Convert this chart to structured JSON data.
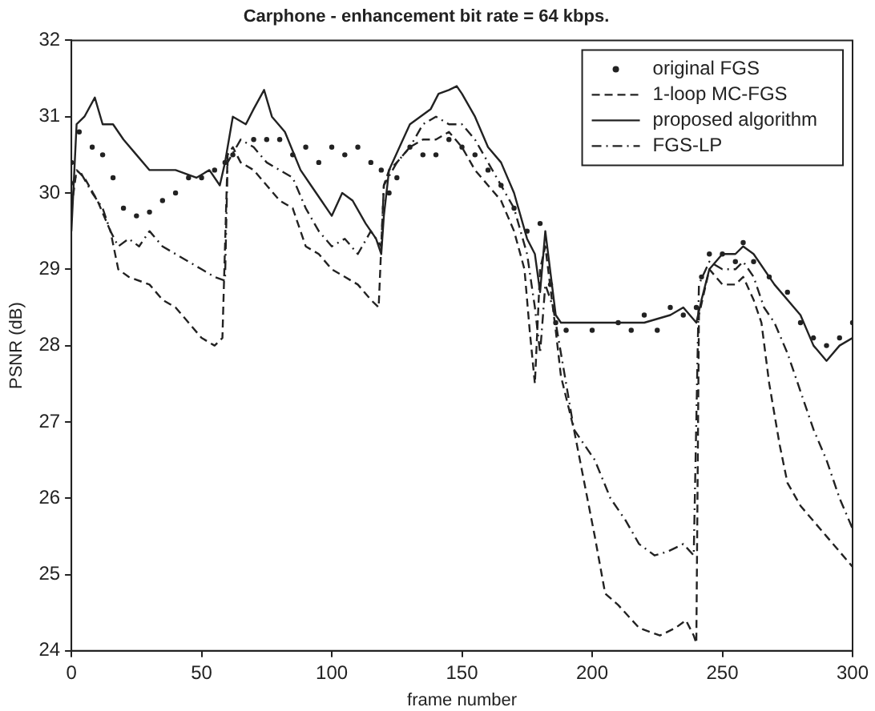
{
  "chart_data": {
    "type": "line",
    "title": "Carphone - enhancement bit rate = 64 kbps.",
    "xlabel": "frame number",
    "ylabel": "PSNR (dB)",
    "xlim": [
      0,
      300
    ],
    "xticks": [
      0,
      50,
      100,
      150,
      200,
      250,
      300
    ],
    "ylim": [
      24,
      32
    ],
    "yticks": [
      24,
      25,
      26,
      27,
      28,
      29,
      30,
      31,
      32
    ],
    "grid": false,
    "legend": "top right",
    "series": [
      {
        "name": "original FGS",
        "type": "scatter",
        "marker": "circle",
        "color": "#222222",
        "x": [
          0,
          3,
          8,
          12,
          16,
          20,
          25,
          30,
          35,
          40,
          45,
          50,
          55,
          59,
          62,
          70,
          75,
          80,
          85,
          90,
          95,
          100,
          105,
          110,
          115,
          119,
          122,
          125,
          130,
          135,
          140,
          145,
          150,
          155,
          160,
          165,
          170,
          175,
          180,
          184,
          186,
          190,
          200,
          210,
          215,
          220,
          225,
          230,
          235,
          240,
          242,
          245,
          250,
          255,
          258,
          262,
          268,
          275,
          280,
          285,
          290,
          295,
          300
        ],
        "values": [
          30.4,
          30.8,
          30.6,
          30.5,
          30.2,
          29.8,
          29.7,
          29.75,
          29.9,
          30.0,
          30.2,
          30.2,
          30.3,
          30.4,
          30.5,
          30.7,
          30.7,
          30.7,
          30.5,
          30.6,
          30.4,
          30.6,
          30.5,
          30.6,
          30.4,
          30.3,
          30.0,
          30.2,
          30.6,
          30.5,
          30.5,
          30.7,
          30.6,
          30.5,
          30.3,
          30.1,
          29.8,
          29.5,
          29.6,
          28.8,
          28.3,
          28.2,
          28.2,
          28.3,
          28.2,
          28.4,
          28.2,
          28.5,
          28.4,
          28.5,
          28.9,
          29.2,
          29.2,
          29.1,
          29.35,
          29.1,
          28.9,
          28.7,
          28.3,
          28.1,
          28.0,
          28.1,
          28.3
        ]
      },
      {
        "name": "1-loop MC-FGS",
        "line_style": "dashed",
        "marker": "none",
        "color": "#222222",
        "x": [
          0,
          2,
          5,
          10,
          15,
          18,
          22,
          30,
          35,
          40,
          45,
          50,
          55,
          58,
          60,
          62,
          65,
          70,
          75,
          80,
          85,
          90,
          95,
          100,
          105,
          110,
          115,
          118,
          120,
          122,
          125,
          130,
          135,
          140,
          145,
          150,
          155,
          160,
          165,
          170,
          174,
          176,
          178,
          180,
          182,
          186,
          188,
          193,
          201,
          205,
          210,
          218,
          226,
          232,
          236,
          239,
          240,
          241,
          245,
          250,
          255,
          258,
          262,
          265,
          268,
          272,
          275,
          280,
          285,
          290,
          295,
          300
        ],
        "values": [
          29.8,
          30.3,
          30.2,
          29.9,
          29.5,
          29.0,
          28.9,
          28.8,
          28.6,
          28.5,
          28.3,
          28.1,
          28.0,
          28.1,
          30.5,
          30.6,
          30.4,
          30.3,
          30.1,
          29.9,
          29.8,
          29.3,
          29.2,
          29.0,
          28.9,
          28.8,
          28.6,
          28.5,
          30.1,
          30.3,
          30.4,
          30.6,
          30.7,
          30.7,
          30.8,
          30.6,
          30.3,
          30.1,
          29.9,
          29.5,
          29.0,
          28.2,
          27.5,
          29.0,
          29.3,
          28.2,
          27.6,
          26.9,
          25.5,
          24.75,
          24.6,
          24.3,
          24.2,
          24.3,
          24.4,
          24.2,
          24.1,
          28.4,
          29.0,
          28.8,
          28.8,
          28.9,
          28.6,
          28.3,
          27.5,
          26.7,
          26.2,
          25.9,
          25.7,
          25.5,
          25.3,
          25.1
        ]
      },
      {
        "name": "proposed algorithm",
        "line_style": "solid",
        "marker": "none",
        "color": "#222222",
        "x": [
          0,
          2,
          5,
          9,
          12,
          16,
          20,
          25,
          30,
          40,
          48,
          53,
          57,
          59,
          60,
          62,
          67,
          70,
          74,
          77,
          82,
          88,
          92,
          96,
          100,
          104,
          108,
          113,
          117,
          119,
          120,
          122,
          126,
          130,
          134,
          138,
          141,
          145,
          148,
          150,
          155,
          160,
          165,
          170,
          175,
          178,
          180,
          182,
          186,
          188,
          200,
          210,
          220,
          230,
          235,
          240,
          242,
          245,
          250,
          255,
          258,
          262,
          270,
          280,
          285,
          290,
          295,
          300
        ],
        "values": [
          29.5,
          30.9,
          31.0,
          31.25,
          30.9,
          30.9,
          30.7,
          30.5,
          30.3,
          30.3,
          30.2,
          30.3,
          30.1,
          30.4,
          30.6,
          31.0,
          30.9,
          31.1,
          31.35,
          31.0,
          30.8,
          30.3,
          30.1,
          29.9,
          29.7,
          30.0,
          29.9,
          29.6,
          29.4,
          29.2,
          29.7,
          30.3,
          30.6,
          30.9,
          31.0,
          31.1,
          31.3,
          31.35,
          31.4,
          31.3,
          31.0,
          30.6,
          30.4,
          30.0,
          29.4,
          29.2,
          28.7,
          29.5,
          28.4,
          28.3,
          28.3,
          28.3,
          28.3,
          28.4,
          28.5,
          28.3,
          28.6,
          29.0,
          29.2,
          29.2,
          29.3,
          29.2,
          28.8,
          28.4,
          28.0,
          27.8,
          28.0,
          28.1
        ]
      },
      {
        "name": "FGS-LP",
        "line_style": "dashdot",
        "marker": "none",
        "color": "#222222",
        "x": [
          0,
          3,
          8,
          12,
          15,
          18,
          22,
          26,
          30,
          35,
          40,
          45,
          50,
          55,
          59,
          60,
          65,
          70,
          75,
          80,
          85,
          90,
          95,
          100,
          105,
          110,
          115,
          119,
          120,
          125,
          130,
          135,
          140,
          145,
          150,
          155,
          160,
          165,
          170,
          175,
          178,
          180,
          182,
          185,
          193,
          201,
          207,
          213,
          218,
          224,
          229,
          235,
          239,
          241,
          245,
          250,
          255,
          258,
          262,
          266,
          270,
          275,
          280,
          285,
          290,
          295,
          300
        ],
        "values": [
          30.1,
          30.3,
          30.0,
          29.8,
          29.5,
          29.3,
          29.4,
          29.3,
          29.5,
          29.3,
          29.2,
          29.1,
          29.0,
          28.9,
          28.85,
          30.4,
          30.7,
          30.6,
          30.4,
          30.3,
          30.2,
          29.8,
          29.5,
          29.3,
          29.4,
          29.2,
          29.5,
          29.3,
          30.1,
          30.4,
          30.6,
          30.9,
          31.0,
          30.9,
          30.9,
          30.7,
          30.4,
          30.1,
          29.8,
          29.2,
          28.5,
          27.9,
          28.8,
          28.5,
          26.9,
          26.5,
          26.0,
          25.7,
          25.4,
          25.25,
          25.3,
          25.4,
          25.25,
          28.8,
          29.1,
          29.0,
          29.0,
          29.1,
          28.9,
          28.5,
          28.3,
          27.9,
          27.4,
          26.9,
          26.5,
          26.0,
          25.6
        ]
      }
    ]
  }
}
